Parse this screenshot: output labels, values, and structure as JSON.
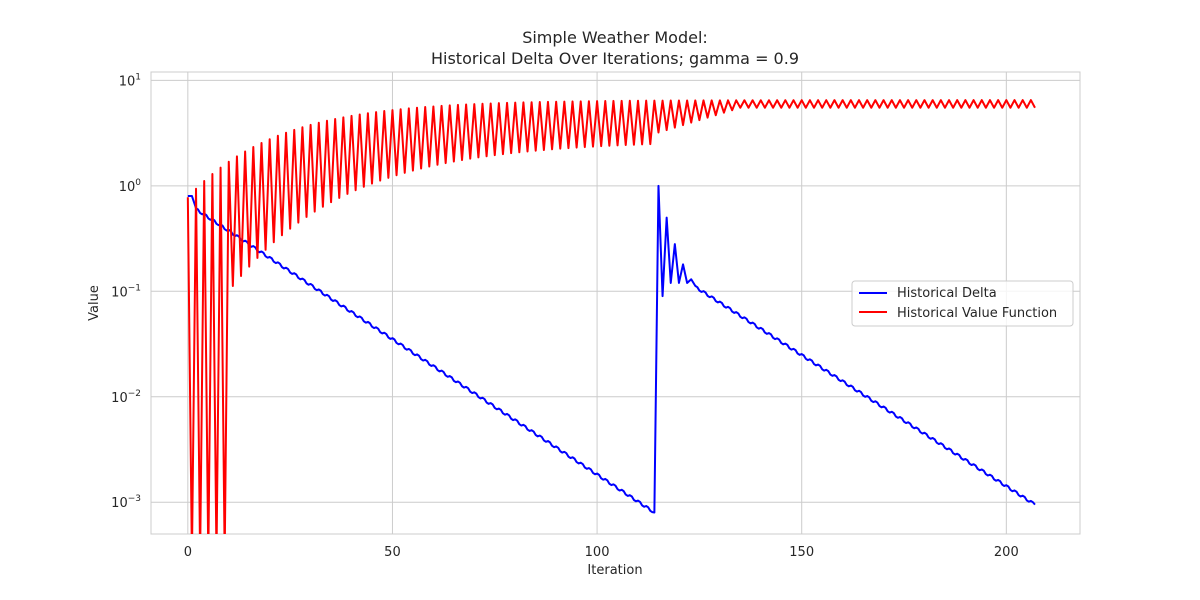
{
  "chart_data": {
    "type": "line",
    "title_lines": [
      "Simple Weather Model:",
      "Historical Delta Over Iterations; gamma = 0.9"
    ],
    "xlabel": "Iteration",
    "ylabel": "Value",
    "xlim": [
      -9,
      218
    ],
    "ylim": [
      0.0005,
      12
    ],
    "yscale": "log",
    "grid": true,
    "legend_position": "center-right",
    "x_ticks": [
      0,
      50,
      100,
      150,
      200
    ],
    "x_tick_labels": [
      "0",
      "50",
      "100",
      "150",
      "200"
    ],
    "y_ticks": [
      0.001,
      0.01,
      0.1,
      1,
      10
    ],
    "y_tick_labels": [
      {
        "base": "10",
        "exp": "−3"
      },
      {
        "base": "10",
        "exp": "−2"
      },
      {
        "base": "10",
        "exp": "−1"
      },
      {
        "base": "10",
        "exp": "0"
      },
      {
        "base": "10",
        "exp": "1"
      }
    ],
    "series": [
      {
        "name": "Historical Delta",
        "color": "#0000ff",
        "anchors": [
          {
            "x": 0,
            "y": 0.8
          },
          {
            "x": 1,
            "y": 0.8
          },
          {
            "x": 2,
            "y": 0.6
          },
          {
            "x": 114,
            "y": 0.0008
          },
          {
            "x": 115,
            "y": 1.0
          },
          {
            "x": 116,
            "y": 0.09
          },
          {
            "x": 117,
            "y": 0.5
          },
          {
            "x": 118,
            "y": 0.12
          },
          {
            "x": 119,
            "y": 0.28
          },
          {
            "x": 120,
            "y": 0.12
          },
          {
            "x": 121,
            "y": 0.18
          },
          {
            "x": 122,
            "y": 0.12
          },
          {
            "x": 123,
            "y": 0.13
          },
          {
            "x": 124,
            "y": 0.11
          },
          {
            "x": 207,
            "y": 0.00095
          }
        ]
      },
      {
        "name": "Historical Value Function",
        "color": "#ff0000",
        "peaks_start": 0.78,
        "peaks_end": 6.5,
        "troughs_start": 0.1,
        "troughs_end": 5.5,
        "x_max": 207,
        "early_drop_iterations": [
          1,
          3,
          5,
          7,
          9
        ],
        "phase_change_iteration": 115
      }
    ]
  }
}
